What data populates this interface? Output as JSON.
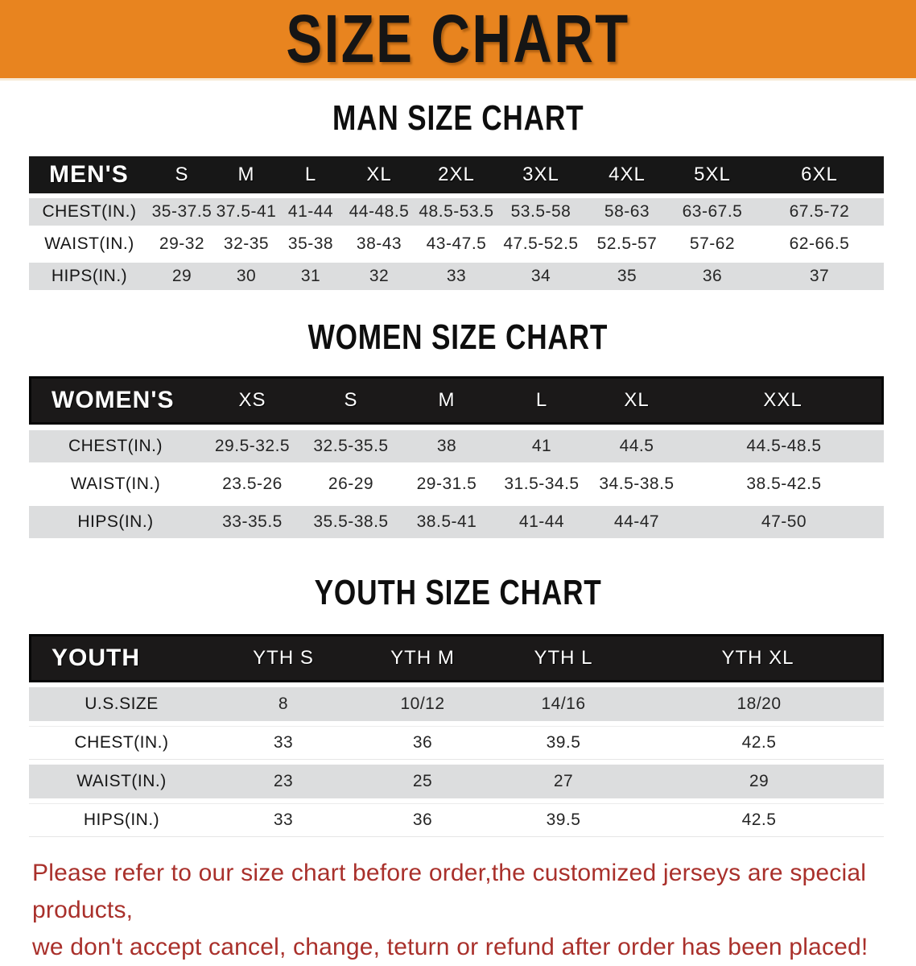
{
  "banner": {
    "title": "SIZE CHART"
  },
  "sections": {
    "man": {
      "heading": "MAN SIZE CHART"
    },
    "women": {
      "heading": "WOMEN SIZE CHART"
    },
    "youth": {
      "heading": "YOUTH SIZE CHART"
    }
  },
  "tables": {
    "mens": {
      "name": "MEN'S",
      "columns": [
        "S",
        "M",
        "L",
        "XL",
        "2XL",
        "3XL",
        "4XL",
        "5XL",
        "6XL"
      ],
      "rows": [
        {
          "label": "CHEST(IN.)",
          "values": [
            "35-37.5",
            "37.5-41",
            "41-44",
            "44-48.5",
            "48.5-53.5",
            "53.5-58",
            "58-63",
            "63-67.5",
            "67.5-72"
          ]
        },
        {
          "label": "WAIST(IN.)",
          "values": [
            "29-32",
            "32-35",
            "35-38",
            "38-43",
            "43-47.5",
            "47.5-52.5",
            "52.5-57",
            "57-62",
            "62-66.5"
          ]
        },
        {
          "label": "HIPS(IN.)",
          "values": [
            "29",
            "30",
            "31",
            "32",
            "33",
            "34",
            "35",
            "36",
            "37"
          ]
        }
      ]
    },
    "womens": {
      "name": "WOMEN'S",
      "columns": [
        "XS",
        "S",
        "M",
        "L",
        "XL",
        "XXL"
      ],
      "rows": [
        {
          "label": "CHEST(IN.)",
          "values": [
            "29.5-32.5",
            "32.5-35.5",
            "38",
            "41",
            "44.5",
            "44.5-48.5"
          ]
        },
        {
          "label": "WAIST(IN.)",
          "values": [
            "23.5-26",
            "26-29",
            "29-31.5",
            "31.5-34.5",
            "34.5-38.5",
            "38.5-42.5"
          ]
        },
        {
          "label": "HIPS(IN.)",
          "values": [
            "33-35.5",
            "35.5-38.5",
            "38.5-41",
            "41-44",
            "44-47",
            "47-50"
          ]
        }
      ]
    },
    "youth": {
      "name": "YOUTH",
      "columns": [
        "YTH S",
        "YTH M",
        "YTH L",
        "YTH XL"
      ],
      "rows": [
        {
          "label": "U.S.SIZE",
          "values": [
            "8",
            "10/12",
            "14/16",
            "18/20"
          ]
        },
        {
          "label": "CHEST(IN.)",
          "values": [
            "33",
            "36",
            "39.5",
            "42.5"
          ]
        },
        {
          "label": "WAIST(IN.)",
          "values": [
            "23",
            "25",
            "27",
            "29"
          ]
        },
        {
          "label": "HIPS(IN.)",
          "values": [
            "33",
            "36",
            "39.5",
            "42.5"
          ]
        }
      ]
    }
  },
  "disclaimer": {
    "line1": "Please refer to our size chart before order,the customized jerseys are special products,",
    "line2": "we don't accept cancel, change, teturn or refund after order has been placed!"
  },
  "colors": {
    "banner_orange": "#e8841f",
    "header_black": "#171717",
    "row_gray": "#dcddde",
    "disclaimer_red": "#a9302b"
  }
}
